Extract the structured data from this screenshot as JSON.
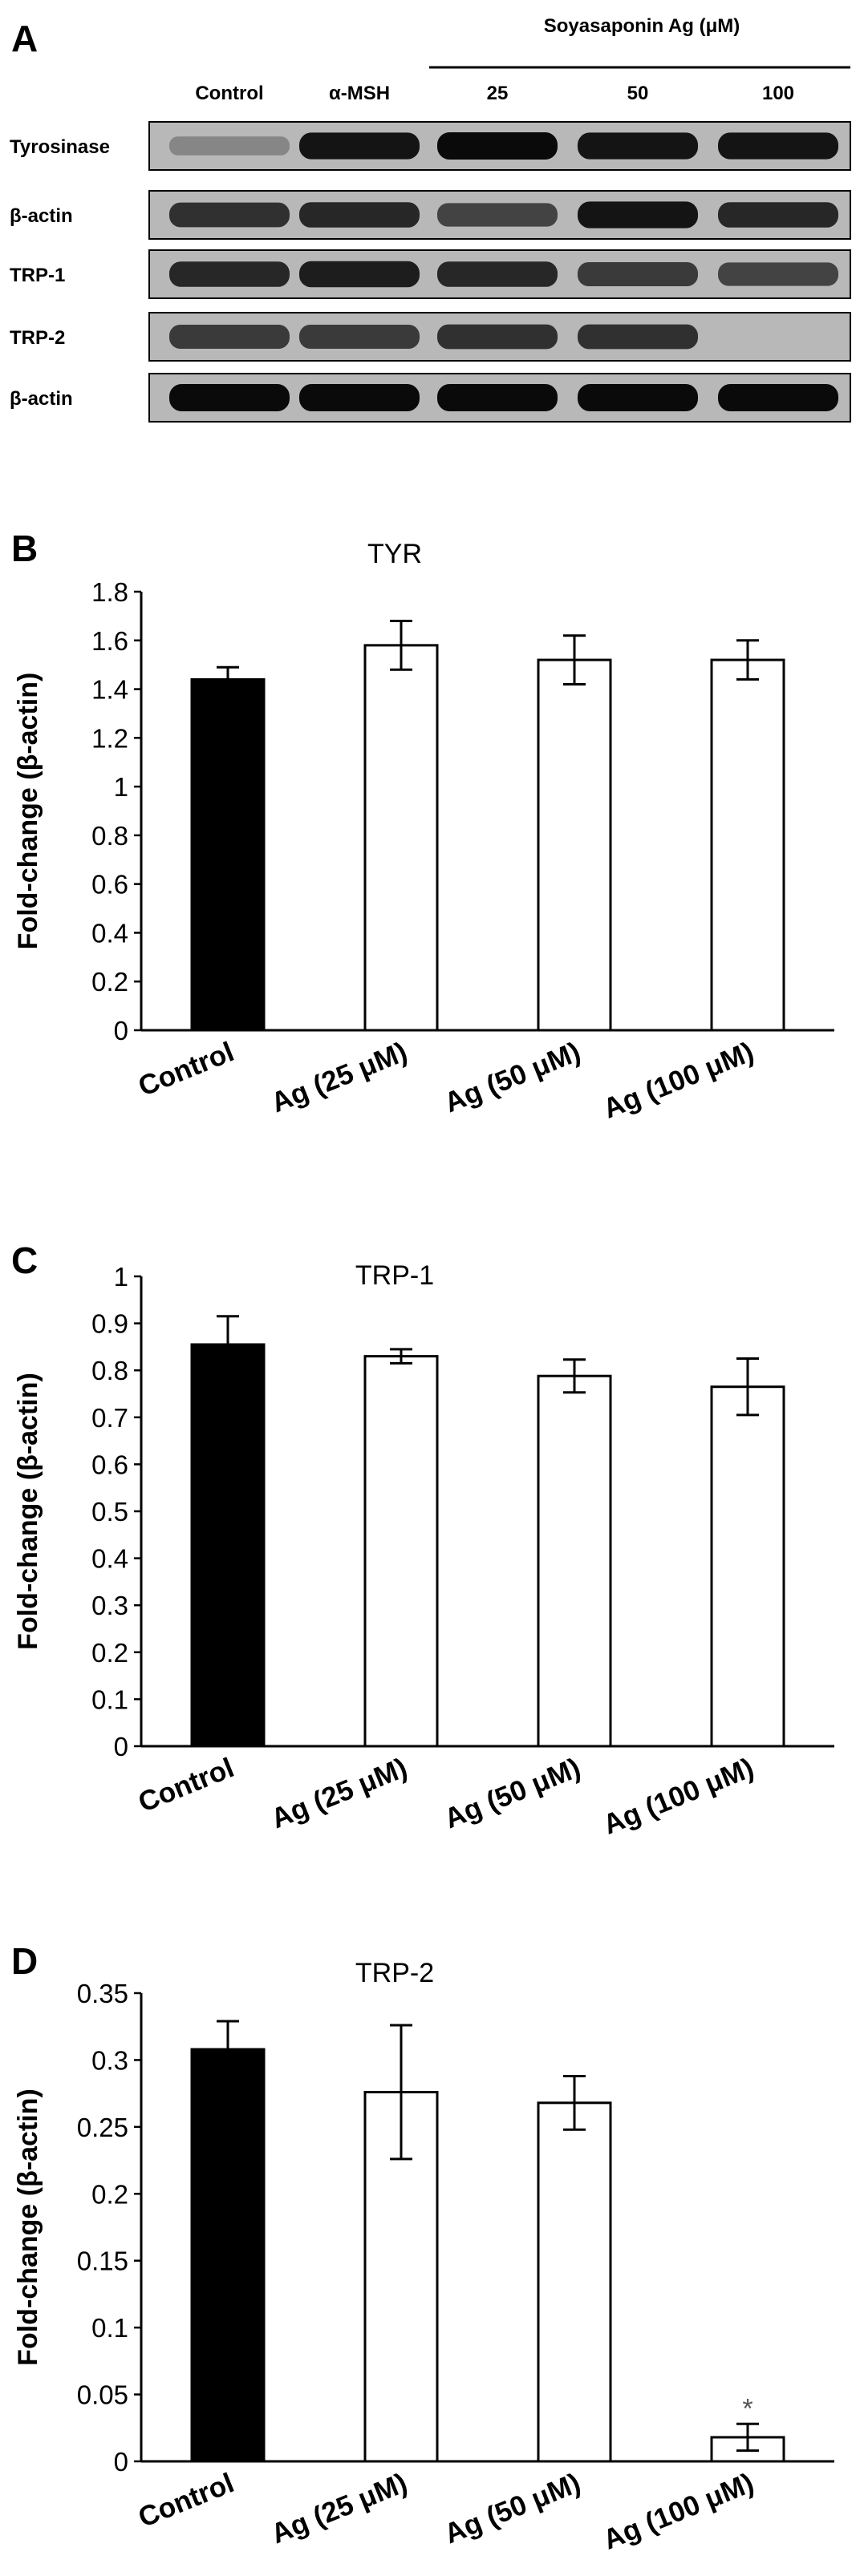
{
  "panel_a": {
    "letter": "A",
    "group_label": "Soyasaponin Ag (μM)",
    "lanes": [
      "Control",
      "α-MSH",
      "25",
      "50",
      "100"
    ],
    "rows": [
      {
        "label": "Tyrosinase",
        "intensity": [
          0.35,
          0.95,
          1.0,
          0.95,
          0.95
        ]
      },
      {
        "label": "β-actin",
        "intensity": [
          0.8,
          0.85,
          0.7,
          0.95,
          0.85
        ]
      },
      {
        "label": "TRP-1",
        "intensity": [
          0.85,
          0.9,
          0.85,
          0.75,
          0.7
        ]
      },
      {
        "label": "TRP-2",
        "intensity": [
          0.75,
          0.75,
          0.8,
          0.8,
          0.0
        ]
      },
      {
        "label": "β-actin",
        "intensity": [
          1.0,
          1.0,
          1.0,
          1.0,
          1.0
        ]
      }
    ]
  },
  "chart_data": [
    {
      "type": "bar",
      "panel": "B",
      "title": "TYR",
      "ylabel": "Fold-change (β-actin)",
      "ylim": [
        0,
        1.8
      ],
      "yticks": [
        "0",
        "0.2",
        "0.4",
        "0.6",
        "0.8",
        "1",
        "1.2",
        "1.4",
        "1.6",
        "1.8"
      ],
      "categories": [
        "Control",
        "Ag (25 μM)",
        "Ag (50 μM)",
        "Ag (100 μM)"
      ],
      "values": [
        1.44,
        1.58,
        1.52,
        1.52
      ],
      "errors": [
        0.05,
        0.1,
        0.1,
        0.08
      ],
      "annotations": [
        "",
        "",
        "",
        ""
      ],
      "colors": [
        "#000000",
        "#ffffff",
        "#ffffff",
        "#ffffff"
      ]
    },
    {
      "type": "bar",
      "panel": "C",
      "title": "TRP-1",
      "ylabel": "Fold-change (β-actin)",
      "ylim": [
        0,
        1
      ],
      "yticks": [
        "0",
        "0.1",
        "0.2",
        "0.3",
        "0.4",
        "0.5",
        "0.6",
        "0.7",
        "0.8",
        "0.9",
        "1"
      ],
      "categories": [
        "Control",
        "Ag (25 μM)",
        "Ag (50 μM)",
        "Ag (100 μM)"
      ],
      "values": [
        0.855,
        0.83,
        0.788,
        0.765
      ],
      "errors": [
        0.06,
        0.015,
        0.035,
        0.06
      ],
      "annotations": [
        "",
        "",
        "",
        ""
      ],
      "colors": [
        "#000000",
        "#ffffff",
        "#ffffff",
        "#ffffff"
      ]
    },
    {
      "type": "bar",
      "panel": "D",
      "title": "TRP-2",
      "ylabel": "Fold-change (β-actin)",
      "ylim": [
        0,
        0.35
      ],
      "yticks": [
        "0",
        "0.05",
        "0.1",
        "0.15",
        "0.2",
        "0.25",
        "0.3",
        "0.35"
      ],
      "categories": [
        "Control",
        "Ag (25 μM)",
        "Ag (50 μM)",
        "Ag (100 μM)"
      ],
      "values": [
        0.308,
        0.276,
        0.268,
        0.018
      ],
      "errors": [
        0.021,
        0.05,
        0.02,
        0.01
      ],
      "annotations": [
        "",
        "",
        "",
        "*"
      ],
      "colors": [
        "#000000",
        "#ffffff",
        "#ffffff",
        "#ffffff"
      ]
    }
  ]
}
